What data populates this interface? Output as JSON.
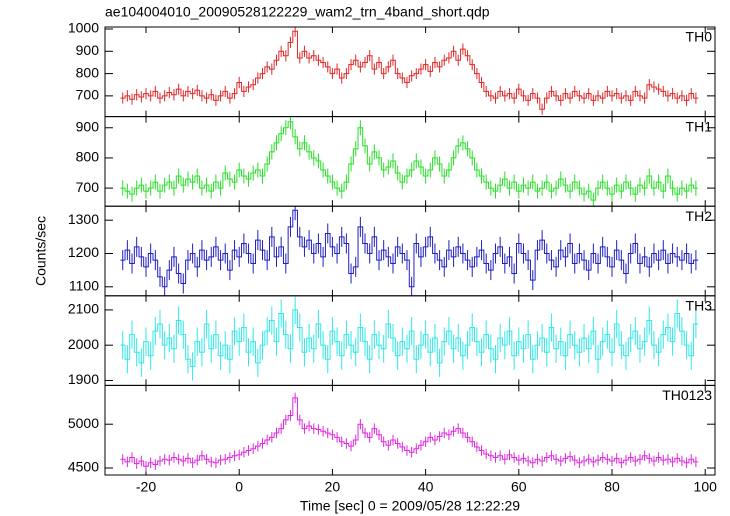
{
  "chart_data": {
    "type": "stacked-step",
    "title": "ae104004010_20090528122229_wam2_trn_4band_short.qdp",
    "x_label": "Time [sec] 0 = 2009/05/28 12:22:29",
    "y_label": "Counts/sec",
    "xlim": [
      -28.8,
      102.1
    ],
    "xticks": [
      -20,
      0,
      20,
      40,
      60,
      80,
      100
    ],
    "x": [
      -25,
      -24,
      -23,
      -22,
      -21,
      -20,
      -19,
      -18,
      -17,
      -16,
      -15,
      -14,
      -13,
      -12,
      -11,
      -10,
      -9,
      -8,
      -7,
      -6,
      -5,
      -4,
      -3,
      -2,
      -1,
      0,
      1,
      2,
      3,
      4,
      5,
      6,
      7,
      8,
      9,
      10,
      11,
      12,
      13,
      14,
      15,
      16,
      17,
      18,
      19,
      20,
      21,
      22,
      23,
      24,
      25,
      26,
      27,
      28,
      29,
      30,
      31,
      32,
      33,
      34,
      35,
      36,
      37,
      38,
      39,
      40,
      41,
      42,
      43,
      44,
      45,
      46,
      47,
      48,
      49,
      50,
      51,
      52,
      53,
      54,
      55,
      56,
      57,
      58,
      59,
      60,
      61,
      62,
      63,
      64,
      65,
      66,
      67,
      68,
      69,
      70,
      71,
      72,
      73,
      74,
      75,
      76,
      77,
      78,
      79,
      80,
      81,
      82,
      83,
      84,
      85,
      86,
      87,
      88,
      89,
      90,
      91,
      92,
      93,
      94,
      95,
      96,
      97,
      98
    ],
    "panels": [
      {
        "name": "TH0",
        "color": "#e02828",
        "error": 25,
        "ylim": [
          607,
          1009
        ],
        "yticks": [
          700,
          800,
          900,
          1000
        ],
        "values": [
          690,
          700,
          685,
          705,
          695,
          710,
          700,
          720,
          690,
          700,
          715,
          705,
          730,
          700,
          720,
          710,
          725,
          700,
          690,
          705,
          680,
          700,
          720,
          690,
          710,
          760,
          720,
          740,
          750,
          780,
          800,
          830,
          820,
          860,
          900,
          880,
          940,
          990,
          870,
          900,
          870,
          880,
          860,
          850,
          830,
          800,
          820,
          780,
          800,
          840,
          860,
          830,
          850,
          880,
          820,
          850,
          800,
          830,
          860,
          800,
          780,
          760,
          790,
          800,
          820,
          840,
          810,
          850,
          830,
          860,
          870,
          900,
          860,
          910,
          880,
          840,
          800,
          760,
          720,
          700,
          690,
          720,
          700,
          710,
          690,
          730,
          700,
          680,
          710,
          690,
          640,
          690,
          720,
          700,
          680,
          710,
          690,
          720,
          700,
          690,
          710,
          680,
          700,
          690,
          720,
          700,
          710,
          690,
          700,
          680,
          720,
          700,
          690,
          750,
          740,
          730,
          720,
          700,
          710,
          690,
          700,
          680,
          710,
          690
        ]
      },
      {
        "name": "TH1",
        "color": "#28e028",
        "error": 25,
        "ylim": [
          640,
          937
        ],
        "yticks": [
          700,
          800,
          900
        ],
        "values": [
          700,
          690,
          680,
          700,
          710,
          690,
          700,
          720,
          690,
          710,
          720,
          700,
          740,
          710,
          730,
          720,
          740,
          700,
          710,
          690,
          720,
          700,
          750,
          730,
          720,
          760,
          740,
          730,
          750,
          760,
          740,
          780,
          820,
          850,
          880,
          900,
          920,
          870,
          830,
          850,
          820,
          800,
          790,
          760,
          740,
          720,
          700,
          690,
          720,
          780,
          830,
          900,
          840,
          780,
          820,
          800,
          760,
          770,
          790,
          750,
          720,
          740,
          760,
          790,
          770,
          740,
          760,
          800,
          780,
          740,
          760,
          800,
          840,
          850,
          830,
          800,
          760,
          740,
          720,
          700,
          690,
          710,
          730,
          700,
          720,
          690,
          710,
          700,
          720,
          690,
          700,
          720,
          690,
          700,
          730,
          710,
          690,
          720,
          700,
          680,
          690,
          660,
          700,
          720,
          700,
          680,
          710,
          690,
          720,
          700,
          680,
          710,
          700,
          740,
          700,
          720,
          690,
          740,
          700,
          680,
          700,
          690,
          710,
          700
        ]
      },
      {
        "name": "TH2",
        "color": "#2020c0",
        "error": 30,
        "ylim": [
          1073,
          1342
        ],
        "yticks": [
          1100,
          1200,
          1300
        ],
        "values": [
          1180,
          1210,
          1170,
          1220,
          1190,
          1160,
          1200,
          1180,
          1130,
          1100,
          1150,
          1190,
          1140,
          1110,
          1180,
          1200,
          1160,
          1210,
          1180,
          1190,
          1220,
          1180,
          1200,
          1150,
          1210,
          1190,
          1230,
          1200,
          1170,
          1240,
          1210,
          1180,
          1250,
          1190,
          1220,
          1170,
          1280,
          1330,
          1250,
          1220,
          1240,
          1200,
          1230,
          1190,
          1260,
          1220,
          1200,
          1250,
          1230,
          1140,
          1160,
          1280,
          1230,
          1200,
          1250,
          1180,
          1210,
          1190,
          1170,
          1220,
          1200,
          1180,
          1100,
          1230,
          1190,
          1220,
          1250,
          1200,
          1180,
          1160,
          1210,
          1190,
          1220,
          1200,
          1180,
          1160,
          1190,
          1210,
          1170,
          1150,
          1200,
          1220,
          1170,
          1190,
          1140,
          1230,
          1200,
          1180,
          1120,
          1210,
          1240,
          1200,
          1180,
          1160,
          1210,
          1190,
          1230,
          1170,
          1200,
          1180,
          1150,
          1200,
          1170,
          1220,
          1190,
          1160,
          1210,
          1180,
          1140,
          1200,
          1230,
          1170,
          1190,
          1160,
          1200,
          1180,
          1210,
          1170,
          1200,
          1190,
          1180,
          1200,
          1170,
          1180
        ]
      },
      {
        "name": "TH3",
        "color": "#30e8e8",
        "error": 40,
        "ylim": [
          1886,
          2140
        ],
        "yticks": [
          1900,
          2000,
          2100
        ],
        "values": [
          2000,
          1960,
          2030,
          1980,
          1950,
          2010,
          1970,
          2040,
          2060,
          2000,
          2020,
          1990,
          2070,
          2030,
          1960,
          1940,
          2010,
          1980,
          2060,
          1990,
          2030,
          1970,
          2000,
          1960,
          2040,
          2010,
          2050,
          1980,
          2010,
          1950,
          2000,
          2040,
          2070,
          2010,
          2090,
          2030,
          1990,
          2100,
          2050,
          1980,
          2020,
          1990,
          2060,
          2000,
          1960,
          2040,
          2010,
          1970,
          2030,
          2000,
          1980,
          2050,
          2010,
          1960,
          2030,
          2000,
          1990,
          2060,
          2020,
          1970,
          2010,
          1990,
          2040,
          1960,
          2000,
          2030,
          1980,
          2020,
          1950,
          2010,
          2040,
          1990,
          2020,
          1970,
          2000,
          2050,
          2010,
          1980,
          2030,
          1990,
          1960,
          2020,
          2000,
          2040,
          1970,
          2010,
          1990,
          2030,
          1960,
          2000,
          2020,
          1980,
          2050,
          1990,
          2010,
          1970,
          2030,
          2000,
          1980,
          2020,
          1990,
          2040,
          1960,
          2010,
          2030,
          1980,
          2060,
          2000,
          1970,
          2020,
          2040,
          1990,
          2010,
          2070,
          2000,
          1980,
          2030,
          2050,
          2010,
          2090,
          2040,
          2000,
          1970,
          2060
        ]
      },
      {
        "name": "TH0123",
        "color": "#e028e0",
        "error": 60,
        "ylim": [
          4420,
          5443
        ],
        "yticks": [
          4500,
          5000
        ],
        "values": [
          4600,
          4570,
          4620,
          4550,
          4580,
          4520,
          4560,
          4540,
          4580,
          4600,
          4590,
          4620,
          4600,
          4580,
          4610,
          4560,
          4590,
          4640,
          4600,
          4570,
          4560,
          4590,
          4600,
          4620,
          4640,
          4650,
          4680,
          4700,
          4720,
          4750,
          4780,
          4820,
          4850,
          4900,
          4950,
          5050,
          5100,
          5300,
          5050,
          4950,
          4980,
          4950,
          4940,
          4920,
          4900,
          4880,
          4850,
          4800,
          4780,
          4750,
          4820,
          5000,
          4900,
          4850,
          4950,
          4880,
          4800,
          4760,
          4820,
          4780,
          4740,
          4700,
          4680,
          4720,
          4760,
          4800,
          4850,
          4820,
          4860,
          4900,
          4880,
          4920,
          4950,
          4900,
          4850,
          4800,
          4740,
          4700,
          4660,
          4640,
          4620,
          4640,
          4600,
          4650,
          4620,
          4590,
          4610,
          4580,
          4560,
          4600,
          4580,
          4620,
          4640,
          4600,
          4580,
          4610,
          4630,
          4590,
          4560,
          4580,
          4600,
          4570,
          4590,
          4620,
          4600,
          4580,
          4610,
          4560,
          4590,
          4620,
          4580,
          4600,
          4640,
          4610,
          4580,
          4620,
          4590,
          4600,
          4570,
          4610,
          4580,
          4560,
          4600,
          4570
        ]
      }
    ]
  }
}
